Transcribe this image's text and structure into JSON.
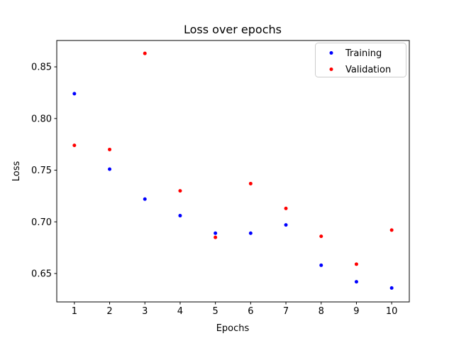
{
  "figure": {
    "background": "#ffffff",
    "axis_color": "#000000"
  },
  "chart_data": {
    "type": "scatter",
    "title": "Loss over epochs",
    "xlabel": "Epochs",
    "ylabel": "Loss",
    "x": [
      1,
      2,
      3,
      4,
      5,
      6,
      7,
      8,
      9,
      10
    ],
    "series": [
      {
        "name": "Training",
        "color": "#0000ff",
        "values": [
          0.824,
          0.751,
          0.722,
          0.706,
          0.689,
          0.689,
          0.697,
          0.658,
          0.642,
          0.636
        ]
      },
      {
        "name": "Validation",
        "color": "#ff0000",
        "values": [
          0.774,
          0.77,
          0.863,
          0.73,
          0.685,
          0.737,
          0.713,
          0.686,
          0.659,
          0.692
        ]
      }
    ],
    "xlim": [
      0.5,
      10.5
    ],
    "ylim": [
      0.6225,
      0.8755
    ],
    "xticks": [
      1,
      2,
      3,
      4,
      5,
      6,
      7,
      8,
      9,
      10
    ],
    "yticks": [
      0.65,
      0.7,
      0.75,
      0.8,
      0.85
    ],
    "ytick_decimals": 2,
    "grid": false,
    "marker": "dot",
    "marker_radius_px": 2.5,
    "legend": {
      "position": "upper right",
      "border_color": "#cccccc",
      "items": [
        {
          "label": "Training",
          "color": "#0000ff"
        },
        {
          "label": "Validation",
          "color": "#ff0000"
        }
      ]
    }
  }
}
